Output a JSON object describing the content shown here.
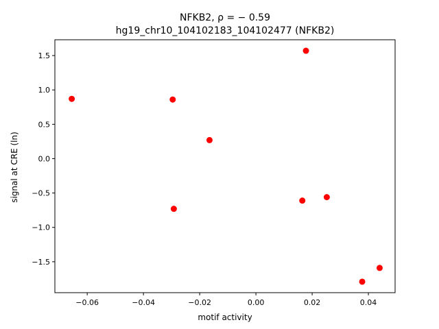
{
  "chart_data": {
    "type": "scatter",
    "title_line1": "NFKB2, ρ = − 0.59",
    "title_line2": "hg19_chr10_104102183_104102477 (NFKB2)",
    "xlabel": "motif activity",
    "ylabel": "signal at CRE (ln)",
    "xlim": [
      -0.0715,
      0.0495
    ],
    "ylim": [
      -1.95,
      1.73
    ],
    "xticks": [
      -0.06,
      -0.04,
      -0.02,
      0.0,
      0.02,
      0.04
    ],
    "xtick_labels": [
      "−0.06",
      "−0.04",
      "−0.02",
      "0.00",
      "0.02",
      "0.04"
    ],
    "yticks": [
      -1.5,
      -1.0,
      -0.5,
      0.0,
      0.5,
      1.0,
      1.5
    ],
    "ytick_labels": [
      "−1.5",
      "−1.0",
      "−0.5",
      "0.0",
      "0.5",
      "1.0",
      "1.5"
    ],
    "grid": false,
    "marker_color": "#ff0000",
    "points": [
      {
        "x": -0.0655,
        "y": 0.87
      },
      {
        "x": -0.0296,
        "y": 0.86
      },
      {
        "x": -0.0165,
        "y": 0.27
      },
      {
        "x": -0.0292,
        "y": -0.73
      },
      {
        "x": 0.0178,
        "y": 1.57
      },
      {
        "x": 0.0165,
        "y": -0.61
      },
      {
        "x": 0.0252,
        "y": -0.56
      },
      {
        "x": 0.0378,
        "y": -1.79
      },
      {
        "x": 0.044,
        "y": -1.59
      }
    ]
  }
}
